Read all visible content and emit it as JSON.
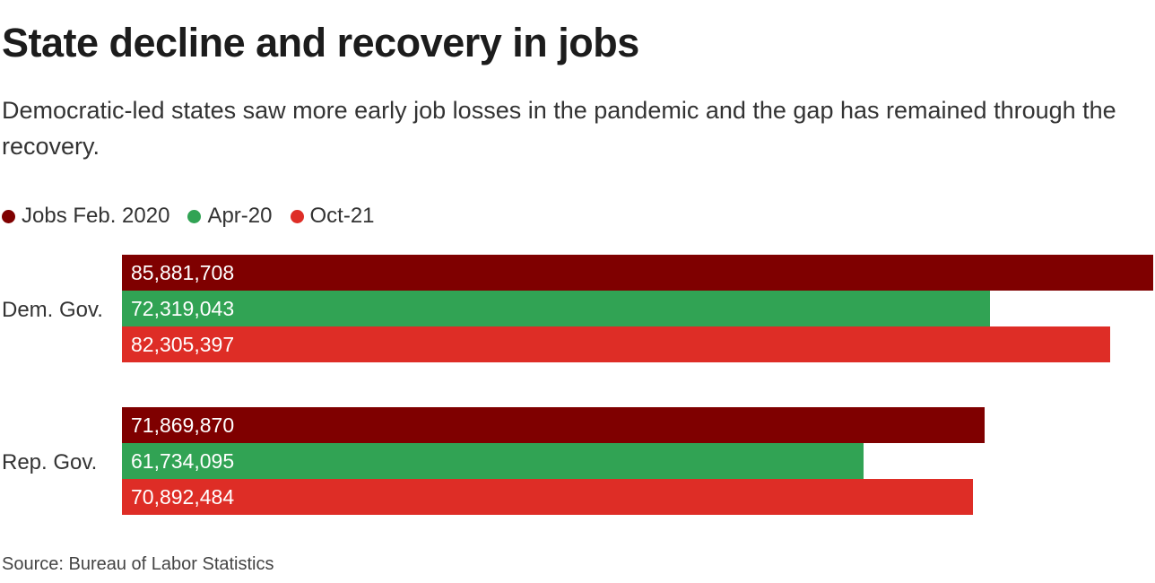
{
  "title": "State decline and recovery in jobs",
  "subtitle": "Democratic-led states saw more early job losses in the pandemic and the gap has remained through the recovery.",
  "source": "Source: Bureau of Labor Statistics",
  "colors": {
    "feb2020": "#7f0000",
    "apr20": "#31a354",
    "oct21": "#de2d26"
  },
  "legend": [
    {
      "label": "Jobs Feb. 2020",
      "color": "#7f0000"
    },
    {
      "label": "Apr-20",
      "color": "#31a354"
    },
    {
      "label": "Oct-21",
      "color": "#de2d26"
    }
  ],
  "chart_data": {
    "type": "bar",
    "orientation": "horizontal",
    "title": "State decline and recovery in jobs",
    "categories": [
      "Dem. Gov.",
      "Rep. Gov."
    ],
    "series": [
      {
        "name": "Jobs Feb. 2020",
        "values": [
          85881708,
          71869870
        ],
        "labels": [
          "85,881,708",
          "71,869,870"
        ]
      },
      {
        "name": "Apr-20",
        "values": [
          72319043,
          61734095
        ],
        "labels": [
          "72,319,043",
          "61,734,095"
        ]
      },
      {
        "name": "Oct-21",
        "values": [
          82305397,
          70892484
        ],
        "labels": [
          "82,305,397",
          "70,892,484"
        ]
      }
    ],
    "xlim": [
      0,
      85881708
    ],
    "grid": false,
    "legend_position": "top-left"
  }
}
